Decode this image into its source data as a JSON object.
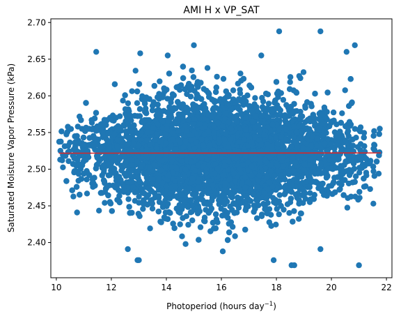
{
  "colors": {
    "points": "#1f77b4",
    "fit_line": "#d62728",
    "axes": "#000000",
    "background": "#ffffff"
  },
  "chart_data": {
    "type": "scatter",
    "title": "AMI H x VP_SAT",
    "xlabel": "Photoperiod (hours day",
    "xlabel_superscript": "−1",
    "xlabel_suffix": ")",
    "ylabel": "Saturated Moisture Vapor Pressure (kPa)",
    "xlim": [
      9.8,
      22.2
    ],
    "ylim": [
      2.352,
      2.705
    ],
    "xticks": [
      10,
      12,
      14,
      16,
      18,
      20,
      22
    ],
    "xtick_labels": [
      "10",
      "12",
      "14",
      "16",
      "18",
      "20",
      "22"
    ],
    "yticks": [
      2.4,
      2.45,
      2.5,
      2.55,
      2.6,
      2.65,
      2.7
    ],
    "ytick_labels": [
      "2.40",
      "2.45",
      "2.50",
      "2.55",
      "2.60",
      "2.65",
      "2.70"
    ],
    "grid": false,
    "series": [
      {
        "kind": "points",
        "approx_count": 6000,
        "x_range": [
          10.1,
          21.8
        ],
        "x_center": 16.0,
        "y_center": 2.52,
        "y_spread_sd": 0.038,
        "outliers": [
          {
            "x": 11.45,
            "y": 2.66
          },
          {
            "x": 13.05,
            "y": 2.658
          },
          {
            "x": 14.05,
            "y": 2.655
          },
          {
            "x": 15.0,
            "y": 2.669
          },
          {
            "x": 17.45,
            "y": 2.655
          },
          {
            "x": 18.1,
            "y": 2.688
          },
          {
            "x": 19.6,
            "y": 2.688
          },
          {
            "x": 20.55,
            "y": 2.66
          },
          {
            "x": 20.85,
            "y": 2.669
          },
          {
            "x": 12.95,
            "y": 2.376
          },
          {
            "x": 13.0,
            "y": 2.376
          },
          {
            "x": 16.05,
            "y": 2.388
          },
          {
            "x": 17.9,
            "y": 2.376
          },
          {
            "x": 18.55,
            "y": 2.369
          },
          {
            "x": 18.65,
            "y": 2.369
          },
          {
            "x": 21.0,
            "y": 2.369
          },
          {
            "x": 12.6,
            "y": 2.391
          },
          {
            "x": 19.6,
            "y": 2.391
          },
          {
            "x": 14.7,
            "y": 2.398
          }
        ]
      },
      {
        "kind": "line",
        "x": [
          10.1,
          21.8
        ],
        "y": [
          2.5218,
          2.5222
        ]
      }
    ]
  }
}
